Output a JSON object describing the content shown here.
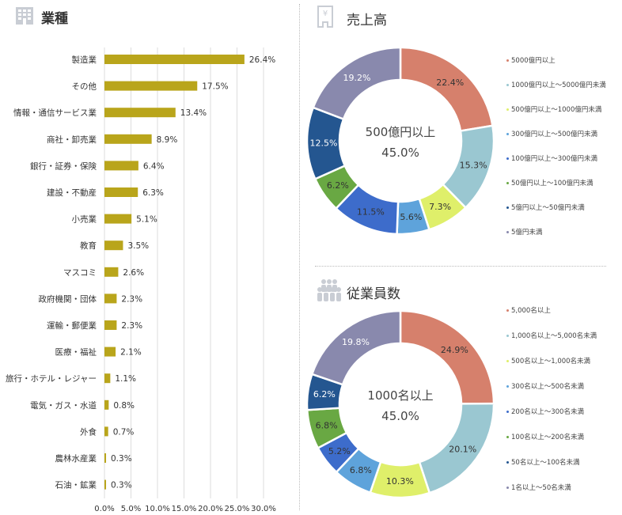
{
  "industry": {
    "title": "業種",
    "icon": "building-icon",
    "chart_data": {
      "type": "bar",
      "orientation": "horizontal",
      "categories": [
        "製造業",
        "その他",
        "情報・通信サービス業",
        "商社・卸売業",
        "銀行・証券・保険",
        "建設・不動産",
        "小売業",
        "教育",
        "マスコミ",
        "政府機関・団体",
        "運輸・郵便業",
        "医療・福祉",
        "旅行・ホテル・レジャー",
        "電気・ガス・水道",
        "外食",
        "農林水産業",
        "石油・鉱業"
      ],
      "values": [
        26.4,
        17.5,
        13.4,
        8.9,
        6.4,
        6.3,
        5.1,
        3.5,
        2.6,
        2.3,
        2.3,
        2.1,
        1.1,
        0.8,
        0.7,
        0.3,
        0.3
      ],
      "labels": [
        "26.4%",
        "17.5%",
        "13.4%",
        "8.9%",
        "6.4%",
        "6.3%",
        "5.1%",
        "3.5%",
        "2.6%",
        "2.3%",
        "2.3%",
        "2.1%",
        "1.1%",
        "0.8%",
        "0.7%",
        "0.3%",
        "0.3%"
      ],
      "xticks": [
        "0.0%",
        "5.0%",
        "10.0%",
        "15.0%",
        "20.0%",
        "25.0%",
        "30.0%"
      ],
      "xlim": [
        0,
        30
      ],
      "color": "#b9a51b",
      "grid": true
    }
  },
  "sales": {
    "title": "売上高",
    "icon": "yen-document-icon",
    "center_label": "500億円以上",
    "center_value": "45.0%",
    "chart_data": {
      "type": "pie",
      "donut": true,
      "categories": [
        "5000億円以上",
        "1000億円以上～5000億円未満",
        "500億円以上～1000億円未満",
        "300億円以上～500億円未満",
        "100億円以上～300億円未満",
        "50億円以上～100億円未満",
        "5億円以上～50億円未満",
        "5億円未満"
      ],
      "values": [
        22.4,
        15.3,
        7.3,
        5.6,
        11.5,
        6.2,
        12.5,
        19.2
      ],
      "labels": [
        "22.4%",
        "15.3%",
        "7.3%",
        "5.6%",
        "11.5%",
        "6.2%",
        "12.5%",
        "19.2%"
      ],
      "colors": [
        "#d6806c",
        "#9ac7d1",
        "#dfef6a",
        "#5ea3db",
        "#3d6ccb",
        "#69a843",
        "#245690",
        "#8989ad"
      ],
      "label_colors": [
        "#333333",
        "#333333",
        "#333333",
        "#333333",
        "#333333",
        "#333333",
        "#ffffff",
        "#ffffff"
      ],
      "legend_position": "right"
    }
  },
  "employees": {
    "title": "従業員数",
    "icon": "people-group-icon",
    "center_label": "1000名以上",
    "center_value": "45.0%",
    "chart_data": {
      "type": "pie",
      "donut": true,
      "categories": [
        "5,000名以上",
        "1,000名以上～5,000名未満",
        "500名以上～1,000名未満",
        "300名以上～500名未満",
        "200名以上～300名未満",
        "100名以上～200名未満",
        "50名以上～100名未満",
        "1名以上～50名未満"
      ],
      "values": [
        24.9,
        20.1,
        10.3,
        6.8,
        5.2,
        6.8,
        6.2,
        19.8
      ],
      "labels": [
        "24.9%",
        "20.1%",
        "10.3%",
        "6.8%",
        "5.2%",
        "6.8%",
        "6.2%",
        "19.8%"
      ],
      "colors": [
        "#d6806c",
        "#9ac7d1",
        "#dfef6a",
        "#5ea3db",
        "#3d6ccb",
        "#69a843",
        "#245690",
        "#8989ad"
      ],
      "label_colors": [
        "#333333",
        "#333333",
        "#333333",
        "#333333",
        "#333333",
        "#333333",
        "#ffffff",
        "#ffffff"
      ],
      "legend_position": "right"
    }
  }
}
